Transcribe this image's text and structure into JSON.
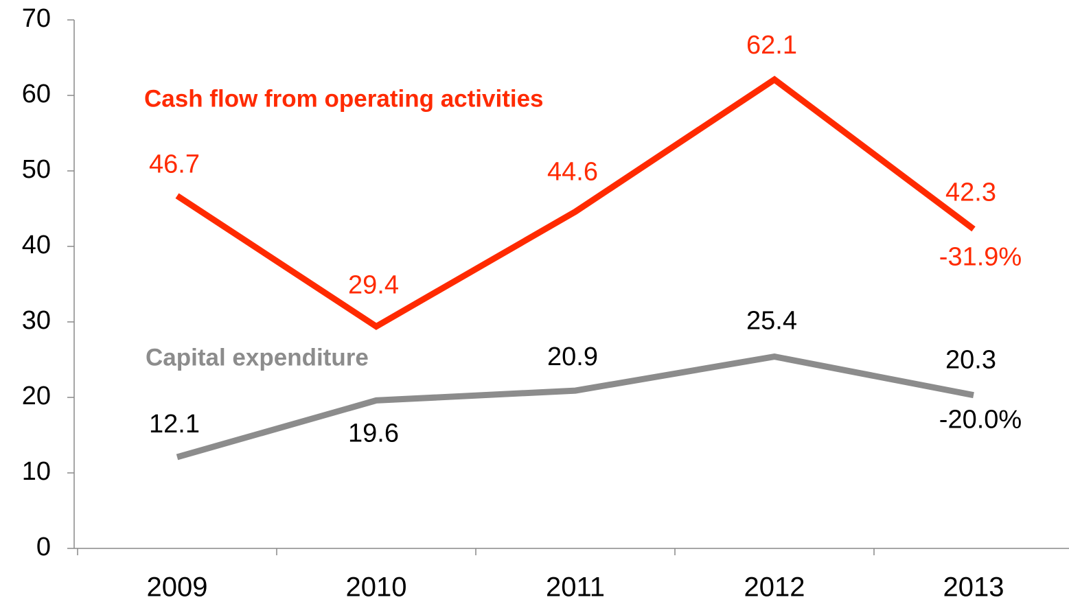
{
  "chart_data": {
    "type": "line",
    "categories": [
      "2009",
      "2010",
      "2011",
      "2012",
      "2013"
    ],
    "series": [
      {
        "name": "Cash flow from operating activities",
        "color": "#ff2a00",
        "values": [
          46.7,
          29.4,
          44.6,
          62.1,
          42.3
        ]
      },
      {
        "name": "Capital expenditure",
        "color": "#8c8c8c",
        "values": [
          12.1,
          19.6,
          20.9,
          25.4,
          20.3
        ]
      }
    ],
    "annotations": [
      "-31.9%",
      "-20.0%"
    ],
    "ylim": [
      0,
      70
    ],
    "yticks": [
      0,
      10,
      20,
      30,
      40,
      50,
      60,
      70
    ],
    "grid": false
  }
}
